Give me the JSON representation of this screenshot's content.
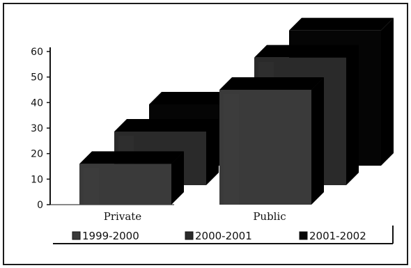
{
  "chart_data": {
    "type": "bar",
    "categories": [
      "Private",
      "Public"
    ],
    "series": [
      {
        "name": "1999-2000",
        "values": [
          16,
          45
        ],
        "color": "#3a3a3a"
      },
      {
        "name": "2000-2001",
        "values": [
          21,
          50
        ],
        "color": "#2a2a2a"
      },
      {
        "name": "2001-2002",
        "values": [
          24,
          53
        ],
        "color": "#050505"
      }
    ],
    "yticks": [
      0,
      10,
      20,
      30,
      40,
      50,
      60
    ],
    "ylim": [
      0,
      60
    ],
    "legend_position": "bottom",
    "grid": false,
    "three_d": true
  }
}
